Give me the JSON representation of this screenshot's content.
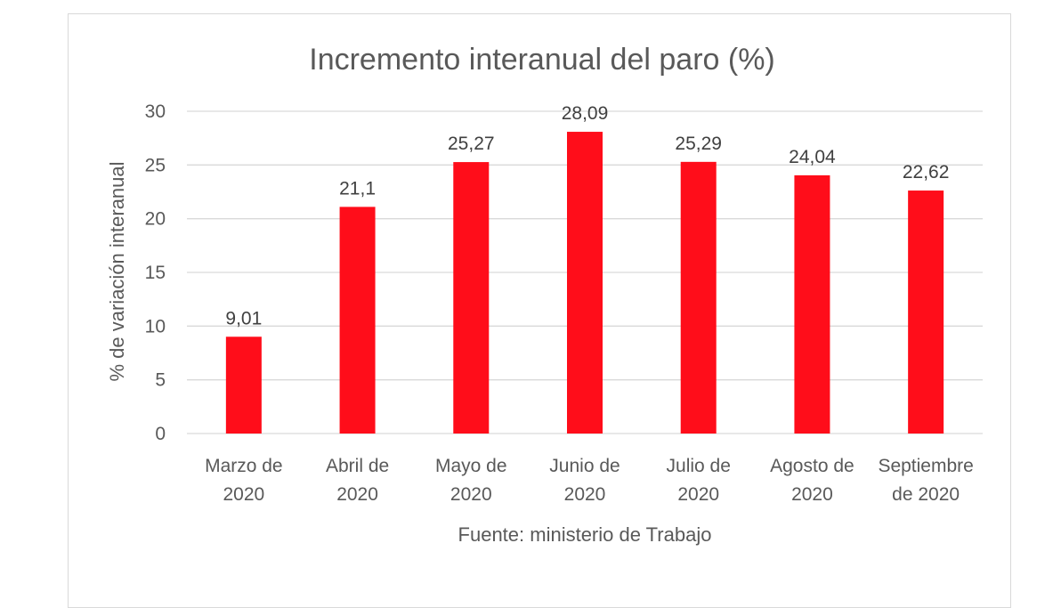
{
  "chart_data": {
    "type": "bar",
    "title": "Incremento interanual del paro  (%)",
    "ylabel": "% de variación interanual",
    "xlabel": "Fuente: ministerio de Trabajo",
    "categories": [
      [
        "Marzo de",
        "2020"
      ],
      [
        "Abril de",
        "2020"
      ],
      [
        "Mayo de",
        "2020"
      ],
      [
        "Junio de",
        "2020"
      ],
      [
        "Julio de",
        "2020"
      ],
      [
        "Agosto de",
        "2020"
      ],
      [
        "Septiembre",
        "de 2020"
      ]
    ],
    "values": [
      9.01,
      21.1,
      25.27,
      28.09,
      25.29,
      24.04,
      22.62
    ],
    "value_labels": [
      "9,01",
      "21,1",
      "25,27",
      "28,09",
      "25,29",
      "24,04",
      "22,62"
    ],
    "ylim": [
      0,
      30
    ],
    "yticks": [
      0,
      5,
      10,
      15,
      20,
      25,
      30
    ],
    "grid": true,
    "colors": {
      "bar": "#ff0d1a",
      "grid": "#d9d9d9",
      "text": "#595959"
    }
  }
}
